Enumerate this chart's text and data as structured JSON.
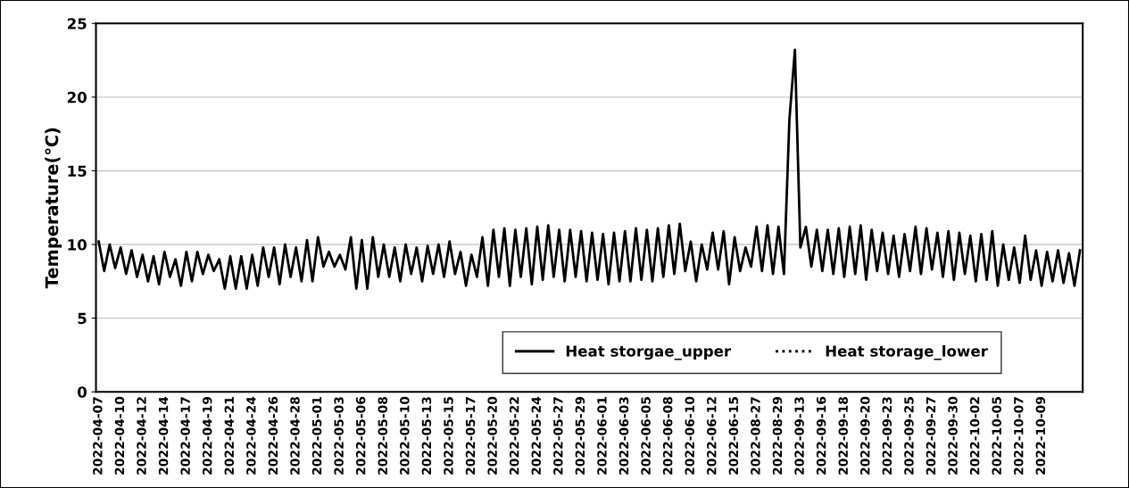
{
  "chart_data": {
    "type": "line",
    "ylabel": "Temperature(℃)",
    "categories": [
      "2022-04-07",
      null,
      null,
      null,
      "2022-04-10",
      null,
      null,
      null,
      "2022-04-12",
      null,
      null,
      null,
      "2022-04-14",
      null,
      null,
      null,
      "2022-04-17",
      null,
      null,
      null,
      "2022-04-19",
      null,
      null,
      null,
      "2022-04-21",
      null,
      null,
      null,
      "2022-04-24",
      null,
      null,
      null,
      "2022-04-26",
      null,
      null,
      null,
      "2022-04-28",
      null,
      null,
      null,
      "2022-05-01",
      null,
      null,
      null,
      "2022-05-03",
      null,
      null,
      null,
      "2022-05-06",
      null,
      null,
      null,
      "2022-05-08",
      null,
      null,
      null,
      "2022-05-10",
      null,
      null,
      null,
      "2022-05-13",
      null,
      null,
      null,
      "2022-05-15",
      null,
      null,
      null,
      "2022-05-17",
      null,
      null,
      null,
      "2022-05-20",
      null,
      null,
      null,
      "2022-05-22",
      null,
      null,
      null,
      "2022-05-24",
      null,
      null,
      null,
      "2022-05-27",
      null,
      null,
      null,
      "2022-05-29",
      null,
      null,
      null,
      "2022-06-01",
      null,
      null,
      null,
      "2022-06-03",
      null,
      null,
      null,
      "2022-06-05",
      null,
      null,
      null,
      "2022-06-08",
      null,
      null,
      null,
      "2022-06-10",
      null,
      null,
      null,
      "2022-06-12",
      null,
      null,
      null,
      "2022-06-15",
      null,
      null,
      null,
      "2022-08-27",
      null,
      null,
      null,
      "2022-08-29",
      null,
      null,
      null,
      "2022-09-13",
      null,
      null,
      null,
      "2022-09-16",
      null,
      null,
      null,
      "2022-09-18",
      null,
      null,
      null,
      "2022-09-20",
      null,
      null,
      null,
      "2022-09-23",
      null,
      null,
      null,
      "2022-09-25",
      null,
      null,
      null,
      "2022-09-27",
      null,
      null,
      null,
      "2022-09-30",
      null,
      null,
      null,
      "2022-10-02",
      null,
      null,
      null,
      "2022-10-05",
      null,
      null,
      null,
      "2022-10-07",
      null,
      null,
      null,
      "2022-10-09",
      null,
      null,
      null,
      null,
      null,
      null,
      null
    ],
    "series": [
      {
        "name": "Heat storgae_upper",
        "color": "#000000",
        "line_style": "solid",
        "values": [
          10.2,
          8.2,
          10.0,
          8.4,
          9.8,
          8.0,
          9.6,
          7.8,
          9.3,
          7.5,
          9.2,
          7.3,
          9.5,
          7.8,
          9.0,
          7.2,
          9.5,
          7.5,
          9.5,
          8.0,
          9.3,
          8.2,
          9.0,
          7.0,
          9.2,
          7.0,
          9.2,
          7.0,
          9.3,
          7.2,
          9.8,
          7.8,
          9.8,
          7.3,
          10.0,
          7.8,
          9.8,
          7.5,
          10.3,
          7.5,
          10.5,
          8.5,
          9.5,
          8.5,
          9.3,
          8.3,
          10.5,
          7.0,
          10.3,
          7.0,
          10.5,
          7.8,
          10.0,
          7.8,
          9.8,
          7.5,
          10.0,
          8.0,
          9.8,
          7.5,
          9.9,
          8.0,
          10.0,
          7.8,
          10.2,
          8.0,
          9.5,
          7.2,
          9.3,
          7.8,
          10.5,
          7.2,
          11.0,
          7.8,
          11.1,
          7.2,
          11.0,
          7.8,
          11.1,
          7.3,
          11.2,
          7.6,
          11.3,
          7.8,
          11.0,
          7.5,
          11.0,
          7.8,
          10.9,
          7.5,
          10.8,
          7.6,
          10.7,
          7.3,
          10.8,
          7.5,
          10.9,
          7.5,
          11.1,
          7.6,
          11.0,
          7.5,
          11.1,
          7.8,
          11.3,
          8.0,
          11.4,
          8.2,
          10.2,
          7.5,
          10.0,
          8.3,
          10.8,
          8.3,
          10.9,
          7.3,
          10.5,
          8.2,
          9.8,
          8.5,
          11.2,
          8.2,
          11.3,
          8.0,
          11.2,
          8.0,
          18.5,
          23.2,
          9.8,
          11.2,
          8.5,
          11.0,
          8.2,
          11.0,
          8.0,
          11.1,
          7.8,
          11.2,
          8.0,
          11.3,
          7.6,
          11.0,
          8.2,
          10.8,
          8.0,
          10.6,
          7.8,
          10.7,
          8.2,
          11.2,
          8.0,
          11.1,
          8.3,
          10.8,
          7.8,
          10.9,
          7.6,
          10.8,
          8.0,
          10.6,
          7.5,
          10.7,
          7.6,
          10.9,
          7.2,
          10.0,
          7.6,
          9.8,
          7.4,
          10.6,
          7.6,
          9.6,
          7.2,
          9.5,
          7.5,
          9.6,
          7.4,
          9.4,
          7.2,
          9.6
        ]
      },
      {
        "name": "Heat storage_lower",
        "color": "#000000",
        "line_style": "dotted",
        "values": [
          null,
          null,
          null,
          null,
          null,
          null,
          null,
          null,
          null,
          null,
          null,
          null,
          null,
          null,
          null,
          null,
          null,
          null,
          null,
          null,
          null,
          null,
          null,
          null,
          null,
          null,
          null,
          null,
          null,
          null,
          null,
          null,
          null,
          null,
          null,
          null,
          null,
          null,
          null,
          null,
          null,
          null,
          null,
          null,
          null,
          null,
          null,
          null,
          null,
          null,
          null,
          null,
          null,
          null,
          null,
          null,
          null,
          null,
          null,
          null,
          null,
          null,
          null,
          null,
          null,
          null,
          null,
          null,
          null,
          null,
          null,
          null,
          null,
          null,
          null,
          null,
          null,
          null,
          null,
          null,
          null,
          null,
          null,
          null,
          null,
          null,
          null,
          null,
          null,
          null,
          null,
          null,
          null,
          null,
          null,
          null,
          null,
          null,
          null,
          null,
          null,
          null,
          null,
          null,
          null,
          null,
          null,
          null,
          null,
          null,
          null,
          null,
          null,
          null,
          null,
          null,
          null,
          null,
          null,
          null,
          null,
          null,
          null,
          null,
          null,
          null,
          null,
          null,
          null,
          null,
          null,
          null,
          null,
          null,
          null,
          null,
          null,
          null,
          null,
          null,
          null,
          null,
          null,
          null,
          null,
          null,
          null,
          null,
          null,
          null,
          null,
          null,
          null,
          null,
          null,
          null,
          null,
          null,
          null,
          null,
          null,
          null,
          null,
          null,
          null,
          null,
          null,
          null,
          null,
          null,
          null,
          null,
          null,
          null,
          null,
          null,
          null,
          null,
          null,
          null
        ]
      }
    ],
    "ylim": [
      0,
      25
    ],
    "yticks": [
      0,
      5,
      10,
      15,
      20,
      25
    ],
    "grid": "y",
    "legend": "bottom right"
  }
}
